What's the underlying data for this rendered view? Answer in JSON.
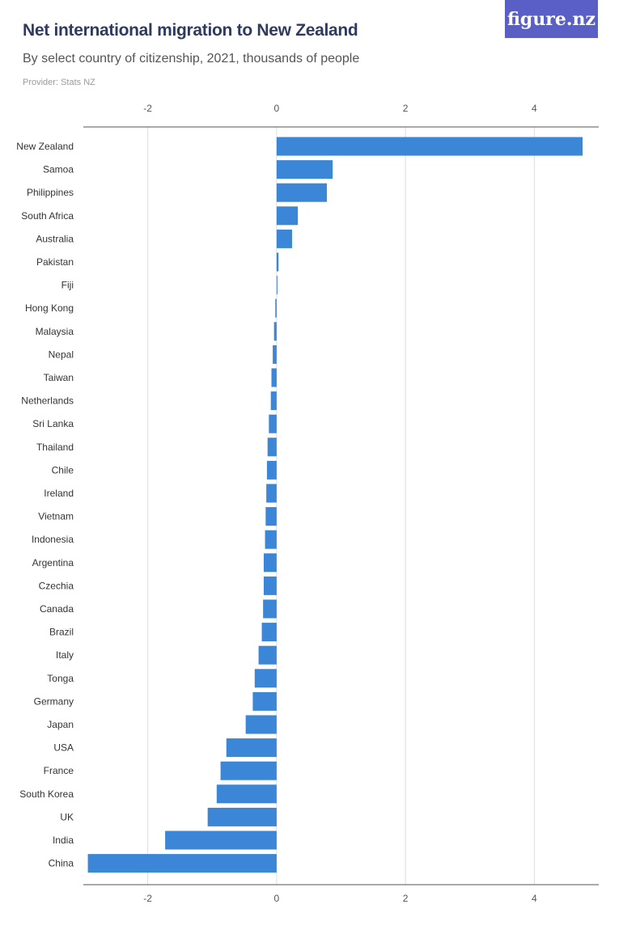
{
  "header": {
    "title": "Net international migration to New Zealand",
    "subtitle": "By select country of citizenship, 2021, thousands of people",
    "provider": "Provider: Stats NZ",
    "logo": "figure.nz"
  },
  "colors": {
    "bar": "#3b86d6",
    "grid": "#dddddd",
    "axis": "#555555",
    "logo_bg": "#5a5fc6"
  },
  "chart_data": {
    "type": "bar",
    "orientation": "horizontal",
    "title": "Net international migration to New Zealand",
    "subtitle": "By select country of citizenship, 2021, thousands of people",
    "xlim": [
      -3,
      5
    ],
    "ticks": [
      "-2",
      "0",
      "2",
      "4"
    ],
    "tick_values": [
      -2,
      0,
      2,
      4
    ],
    "grid": true,
    "categories": [
      "New Zealand",
      "Samoa",
      "Philippines",
      "South Africa",
      "Australia",
      "Pakistan",
      "Fiji",
      "Hong Kong",
      "Malaysia",
      "Nepal",
      "Taiwan",
      "Netherlands",
      "Sri Lanka",
      "Thailand",
      "Chile",
      "Ireland",
      "Vietnam",
      "Indonesia",
      "Argentina",
      "Czechia",
      "Canada",
      "Brazil",
      "Italy",
      "Tonga",
      "Germany",
      "Japan",
      "USA",
      "France",
      "South Korea",
      "UK",
      "India",
      "China"
    ],
    "values": [
      4.75,
      0.87,
      0.78,
      0.33,
      0.24,
      0.03,
      0.01,
      -0.02,
      -0.04,
      -0.06,
      -0.08,
      -0.09,
      -0.12,
      -0.14,
      -0.15,
      -0.16,
      -0.17,
      -0.18,
      -0.2,
      -0.2,
      -0.21,
      -0.23,
      -0.28,
      -0.34,
      -0.37,
      -0.48,
      -0.78,
      -0.87,
      -0.93,
      -1.07,
      -1.73,
      -2.93
    ]
  }
}
